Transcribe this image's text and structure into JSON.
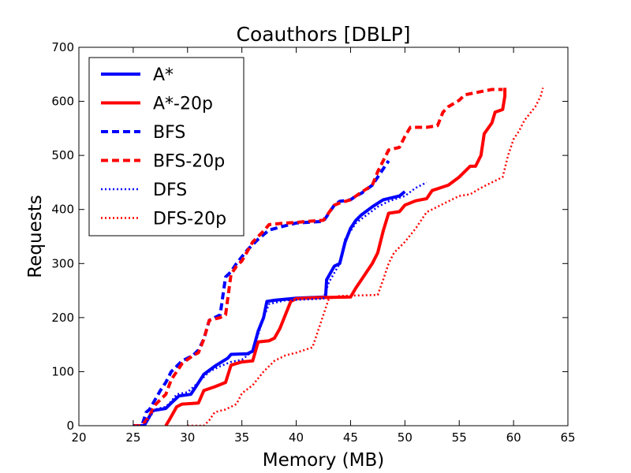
{
  "chart_data": {
    "type": "line",
    "title": "Coauthors [DBLP]",
    "xlabel": "Memory (MB)",
    "ylabel": "Requests",
    "xlim": [
      20,
      65
    ],
    "ylim": [
      0,
      700
    ],
    "xticks": [
      20,
      25,
      30,
      35,
      40,
      45,
      50,
      55,
      60,
      65
    ],
    "yticks": [
      0,
      100,
      200,
      300,
      400,
      500,
      600,
      700
    ],
    "grid": false,
    "legend_position": "top-left",
    "series": [
      {
        "name": "A*",
        "color": "#0000ff",
        "style": "solid",
        "width": "thick",
        "points": [
          [
            25,
            0
          ],
          [
            26,
            0
          ],
          [
            26.3,
            10
          ],
          [
            26.8,
            28
          ],
          [
            28,
            32
          ],
          [
            28.5,
            42
          ],
          [
            29.2,
            55
          ],
          [
            30.3,
            58
          ],
          [
            30.7,
            70
          ],
          [
            31.5,
            95
          ],
          [
            32.5,
            110
          ],
          [
            33.7,
            125
          ],
          [
            34,
            132
          ],
          [
            35.5,
            133
          ],
          [
            36,
            138
          ],
          [
            36.5,
            175
          ],
          [
            37,
            200
          ],
          [
            37.3,
            230
          ],
          [
            38,
            232
          ],
          [
            40,
            236
          ],
          [
            42.7,
            238
          ],
          [
            42.8,
            270
          ],
          [
            43.5,
            295
          ],
          [
            44,
            300
          ],
          [
            44.5,
            340
          ],
          [
            45,
            365
          ],
          [
            45.5,
            380
          ],
          [
            46,
            390
          ],
          [
            47,
            405
          ],
          [
            48,
            418
          ],
          [
            49.5,
            425
          ],
          [
            50,
            433
          ]
        ]
      },
      {
        "name": "A*-20p",
        "color": "#ff0000",
        "style": "solid",
        "width": "thick",
        "points": [
          [
            28,
            0
          ],
          [
            28.3,
            10
          ],
          [
            29,
            35
          ],
          [
            29.5,
            40
          ],
          [
            31,
            42
          ],
          [
            31.5,
            65
          ],
          [
            32.5,
            72
          ],
          [
            33.5,
            80
          ],
          [
            34,
            112
          ],
          [
            35,
            118
          ],
          [
            36,
            120
          ],
          [
            36.5,
            155
          ],
          [
            37.5,
            157
          ],
          [
            38,
            162
          ],
          [
            38.5,
            180
          ],
          [
            39,
            205
          ],
          [
            39.5,
            230
          ],
          [
            40,
            235
          ],
          [
            42,
            237
          ],
          [
            45,
            238
          ],
          [
            45.5,
            255
          ],
          [
            46,
            270
          ],
          [
            47,
            300
          ],
          [
            47.5,
            320
          ],
          [
            48,
            360
          ],
          [
            48.5,
            393
          ],
          [
            49.5,
            396
          ],
          [
            50,
            408
          ],
          [
            51,
            416
          ],
          [
            52,
            420
          ],
          [
            52.5,
            435
          ],
          [
            54,
            445
          ],
          [
            55,
            460
          ],
          [
            56,
            480
          ],
          [
            56.5,
            480
          ],
          [
            57,
            500
          ],
          [
            57.3,
            540
          ],
          [
            58,
            560
          ],
          [
            58.3,
            580
          ],
          [
            59,
            585
          ],
          [
            59.2,
            610
          ],
          [
            59.2,
            625
          ]
        ]
      },
      {
        "name": "BFS",
        "color": "#0000ff",
        "style": "dashed",
        "width": "thick",
        "points": [
          [
            25,
            0
          ],
          [
            25.8,
            0
          ],
          [
            26.2,
            25
          ],
          [
            26.5,
            30
          ],
          [
            27.5,
            65
          ],
          [
            28,
            80
          ],
          [
            28.5,
            100
          ],
          [
            29,
            110
          ],
          [
            29.5,
            120
          ],
          [
            30.5,
            130
          ],
          [
            31,
            140
          ],
          [
            31.5,
            160
          ],
          [
            32,
            195
          ],
          [
            33,
            205
          ],
          [
            33.5,
            275
          ],
          [
            34,
            285
          ],
          [
            34.5,
            300
          ],
          [
            35.5,
            325
          ],
          [
            36.5,
            345
          ],
          [
            37.5,
            362
          ],
          [
            39,
            370
          ],
          [
            40,
            375
          ],
          [
            42.5,
            378
          ],
          [
            43.5,
            408
          ],
          [
            44,
            415
          ],
          [
            45,
            418
          ],
          [
            45.5,
            425
          ],
          [
            46,
            430
          ],
          [
            47,
            445
          ],
          [
            47.5,
            460
          ],
          [
            48,
            475
          ],
          [
            48.5,
            490
          ]
        ]
      },
      {
        "name": "BFS-20p",
        "color": "#ff0000",
        "style": "dashed",
        "width": "thick",
        "points": [
          [
            25,
            0
          ],
          [
            25.8,
            0
          ],
          [
            26.5,
            18
          ],
          [
            27,
            38
          ],
          [
            28,
            58
          ],
          [
            28.5,
            85
          ],
          [
            29.5,
            115
          ],
          [
            30.5,
            130
          ],
          [
            31,
            135
          ],
          [
            31.5,
            160
          ],
          [
            32,
            195
          ],
          [
            33,
            200
          ],
          [
            33.5,
            205
          ],
          [
            34,
            280
          ],
          [
            34.5,
            295
          ],
          [
            35,
            305
          ],
          [
            36,
            340
          ],
          [
            37,
            360
          ],
          [
            37.5,
            372
          ],
          [
            39,
            375
          ],
          [
            40,
            376
          ],
          [
            41,
            378
          ],
          [
            42.5,
            380
          ],
          [
            43.5,
            408
          ],
          [
            44,
            412
          ],
          [
            45,
            418
          ],
          [
            45.5,
            425
          ],
          [
            46,
            432
          ],
          [
            47,
            445
          ],
          [
            47.5,
            470
          ],
          [
            48,
            490
          ],
          [
            48.5,
            510
          ],
          [
            49.5,
            515
          ],
          [
            50,
            535
          ],
          [
            50.5,
            552
          ],
          [
            52,
            552
          ],
          [
            53,
            555
          ],
          [
            53.5,
            580
          ],
          [
            54,
            590
          ],
          [
            55,
            602
          ],
          [
            55.5,
            612
          ],
          [
            57,
            618
          ],
          [
            58,
            622
          ],
          [
            59,
            622
          ]
        ]
      },
      {
        "name": "DFS",
        "color": "#0000ff",
        "style": "dotted",
        "width": "thin",
        "points": [
          [
            25,
            0
          ],
          [
            26,
            0
          ],
          [
            26.5,
            15
          ],
          [
            27,
            30
          ],
          [
            28,
            35
          ],
          [
            28.5,
            45
          ],
          [
            29,
            58
          ],
          [
            30,
            62
          ],
          [
            31,
            80
          ],
          [
            32,
            100
          ],
          [
            33,
            110
          ],
          [
            34,
            118
          ],
          [
            35,
            122
          ],
          [
            36,
            138
          ],
          [
            37,
            200
          ],
          [
            37.5,
            225
          ],
          [
            39,
            232
          ],
          [
            42.5,
            235
          ],
          [
            43,
            265
          ],
          [
            44,
            300
          ],
          [
            44.5,
            345
          ],
          [
            45.5,
            375
          ],
          [
            46.5,
            390
          ],
          [
            47.5,
            405
          ],
          [
            48.5,
            415
          ],
          [
            50,
            425
          ],
          [
            51,
            440
          ],
          [
            52,
            450
          ]
        ]
      },
      {
        "name": "DFS-20p",
        "color": "#ff0000",
        "style": "dotted",
        "width": "thin",
        "points": [
          [
            30,
            0
          ],
          [
            31.5,
            0
          ],
          [
            32,
            10
          ],
          [
            32.5,
            25
          ],
          [
            33.5,
            30
          ],
          [
            34.5,
            40
          ],
          [
            35,
            60
          ],
          [
            36,
            75
          ],
          [
            37,
            100
          ],
          [
            38,
            120
          ],
          [
            39,
            130
          ],
          [
            40,
            135
          ],
          [
            41.5,
            145
          ],
          [
            42,
            175
          ],
          [
            42.5,
            205
          ],
          [
            43,
            235
          ],
          [
            44,
            240
          ],
          [
            47.5,
            242
          ],
          [
            48,
            270
          ],
          [
            48.5,
            300
          ],
          [
            49,
            320
          ],
          [
            50,
            340
          ],
          [
            51,
            365
          ],
          [
            52,
            395
          ],
          [
            53,
            405
          ],
          [
            54,
            415
          ],
          [
            55,
            425
          ],
          [
            56,
            428
          ],
          [
            57,
            440
          ],
          [
            58,
            450
          ],
          [
            59,
            460
          ],
          [
            59.5,
            500
          ],
          [
            60,
            530
          ],
          [
            60.5,
            545
          ],
          [
            61,
            565
          ],
          [
            62,
            590
          ],
          [
            62.5,
            610
          ],
          [
            62.7,
            625
          ]
        ]
      }
    ]
  }
}
